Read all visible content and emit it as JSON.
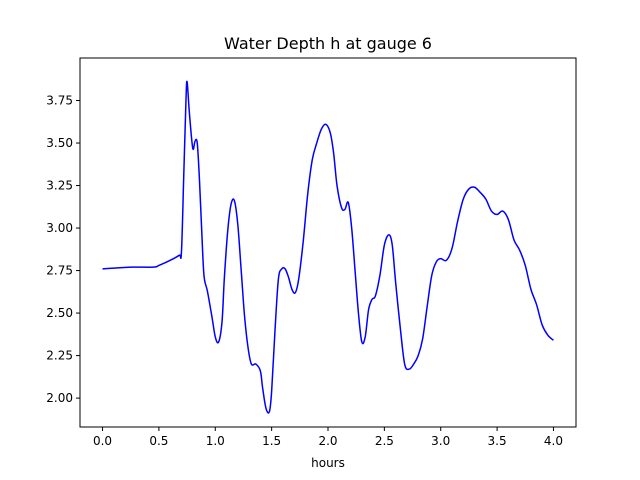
{
  "chart_data": {
    "type": "line",
    "title": "Water Depth h at gauge 6",
    "xlabel": "hours",
    "ylabel": "",
    "xlim": [
      -0.2,
      4.2
    ],
    "ylim": [
      1.83,
      4.0
    ],
    "x_ticks": [
      0.0,
      0.5,
      1.0,
      1.5,
      2.0,
      2.5,
      3.0,
      3.5,
      4.0
    ],
    "x_tick_labels": [
      "0.0",
      "0.5",
      "1.0",
      "1.5",
      "2.0",
      "2.5",
      "3.0",
      "3.5",
      "4.0"
    ],
    "y_ticks": [
      2.0,
      2.25,
      2.5,
      2.75,
      3.0,
      3.25,
      3.5,
      3.75
    ],
    "y_tick_labels": [
      "2.00",
      "2.25",
      "2.50",
      "2.75",
      "3.00",
      "3.25",
      "3.50",
      "3.75"
    ],
    "grid": false,
    "series": [
      {
        "color": "#0000ff",
        "x": [
          0.0,
          0.25,
          0.45,
          0.5,
          0.6,
          0.68,
          0.7,
          0.72,
          0.74,
          0.75,
          0.77,
          0.8,
          0.82,
          0.84,
          0.86,
          0.88,
          0.9,
          0.93,
          0.97,
          1.0,
          1.03,
          1.06,
          1.08,
          1.11,
          1.14,
          1.17,
          1.2,
          1.23,
          1.26,
          1.29,
          1.32,
          1.36,
          1.4,
          1.42,
          1.45,
          1.48,
          1.5,
          1.53,
          1.56,
          1.59,
          1.62,
          1.65,
          1.68,
          1.71,
          1.74,
          1.78,
          1.82,
          1.86,
          1.9,
          1.94,
          1.98,
          2.02,
          2.05,
          2.08,
          2.12,
          2.15,
          2.18,
          2.21,
          2.24,
          2.27,
          2.3,
          2.33,
          2.36,
          2.39,
          2.42,
          2.46,
          2.5,
          2.54,
          2.57,
          2.6,
          2.64,
          2.68,
          2.72,
          2.76,
          2.8,
          2.84,
          2.88,
          2.92,
          2.96,
          3.0,
          3.05,
          3.1,
          3.15,
          3.2,
          3.25,
          3.3,
          3.35,
          3.4,
          3.45,
          3.5,
          3.55,
          3.6,
          3.65,
          3.7,
          3.75,
          3.8,
          3.85,
          3.9,
          3.95,
          4.0
        ],
        "y": [
          2.76,
          2.77,
          2.77,
          2.78,
          2.81,
          2.84,
          2.86,
          3.3,
          3.75,
          3.86,
          3.68,
          3.47,
          3.51,
          3.5,
          3.28,
          2.98,
          2.72,
          2.63,
          2.48,
          2.36,
          2.33,
          2.45,
          2.7,
          2.98,
          3.14,
          3.16,
          3.02,
          2.75,
          2.48,
          2.3,
          2.2,
          2.2,
          2.16,
          2.06,
          1.94,
          1.92,
          2.04,
          2.4,
          2.7,
          2.76,
          2.76,
          2.71,
          2.64,
          2.62,
          2.7,
          2.92,
          3.2,
          3.4,
          3.5,
          3.58,
          3.61,
          3.56,
          3.44,
          3.25,
          3.12,
          3.11,
          3.15,
          3.0,
          2.75,
          2.5,
          2.33,
          2.36,
          2.52,
          2.58,
          2.6,
          2.72,
          2.9,
          2.96,
          2.9,
          2.68,
          2.42,
          2.2,
          2.17,
          2.2,
          2.25,
          2.35,
          2.54,
          2.72,
          2.8,
          2.82,
          2.81,
          2.88,
          3.04,
          3.17,
          3.23,
          3.24,
          3.21,
          3.17,
          3.1,
          3.08,
          3.1,
          3.05,
          2.93,
          2.87,
          2.78,
          2.64,
          2.55,
          2.43,
          2.37,
          2.34
        ]
      }
    ]
  }
}
